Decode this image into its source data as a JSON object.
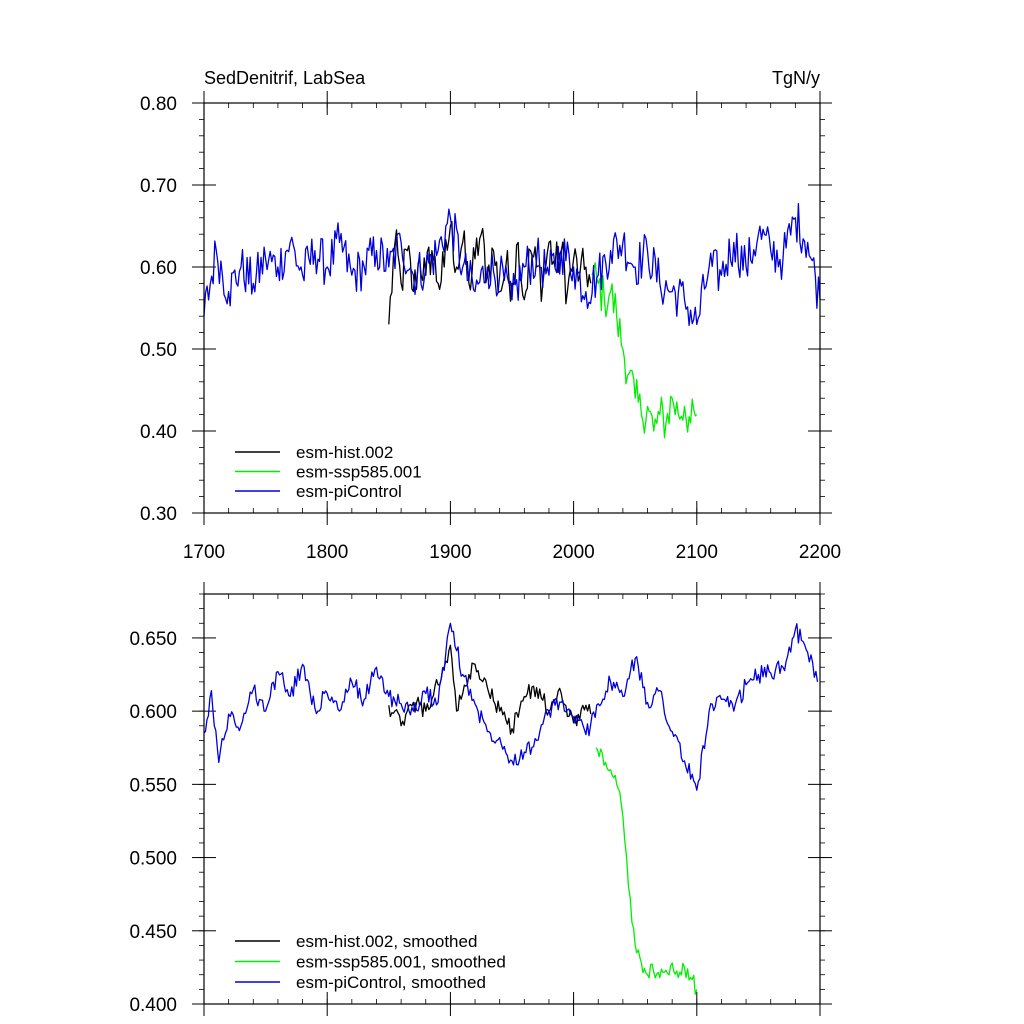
{
  "chart_data": [
    {
      "type": "line",
      "title_left": "SedDenitrif, LabSea",
      "title_right": "TgN/y",
      "xlabel": "",
      "ylabel": "",
      "xlim": [
        1700,
        2200
      ],
      "ylim": [
        0.3,
        0.8
      ],
      "x_ticks": [
        1700,
        1800,
        1900,
        2000,
        2100,
        2200
      ],
      "x_tick_labels": [
        "1700",
        "1800",
        "1900",
        "2000",
        "2100",
        "2200"
      ],
      "y_ticks": [
        0.3,
        0.4,
        0.5,
        0.6,
        0.7,
        0.8
      ],
      "y_tick_labels": [
        "0.30",
        "0.40",
        "0.50",
        "0.60",
        "0.70",
        "0.80"
      ],
      "grid": false,
      "legend_position": "bottom-left",
      "series": [
        {
          "name": "esm-hist.002",
          "color": "#000000",
          "x": [
            1850,
            1855,
            1860,
            1865,
            1870,
            1875,
            1880,
            1885,
            1890,
            1895,
            1900,
            1905,
            1910,
            1915,
            1920,
            1925,
            1930,
            1935,
            1940,
            1945,
            1950,
            1955,
            1960,
            1965,
            1970,
            1975,
            1980,
            1985,
            1990,
            1995,
            2000,
            2005,
            2010,
            2014
          ],
          "y": [
            0.53,
            0.63,
            0.58,
            0.62,
            0.57,
            0.61,
            0.59,
            0.62,
            0.58,
            0.6,
            0.65,
            0.6,
            0.63,
            0.58,
            0.61,
            0.64,
            0.59,
            0.62,
            0.57,
            0.6,
            0.58,
            0.63,
            0.56,
            0.62,
            0.6,
            0.58,
            0.63,
            0.6,
            0.62,
            0.57,
            0.61,
            0.59,
            0.6,
            0.58
          ]
        },
        {
          "name": "esm-ssp585.001",
          "color": "#00ee00",
          "x": [
            2015,
            2020,
            2025,
            2030,
            2035,
            2040,
            2045,
            2050,
            2055,
            2060,
            2065,
            2070,
            2075,
            2080,
            2085,
            2090,
            2095,
            2100
          ],
          "y": [
            0.59,
            0.58,
            0.56,
            0.57,
            0.54,
            0.5,
            0.47,
            0.44,
            0.42,
            0.43,
            0.4,
            0.42,
            0.41,
            0.44,
            0.42,
            0.43,
            0.41,
            0.42
          ]
        },
        {
          "name": "esm-piControl",
          "color": "#0000dd",
          "x": [
            1700,
            1710,
            1720,
            1730,
            1740,
            1750,
            1760,
            1770,
            1780,
            1790,
            1800,
            1810,
            1820,
            1830,
            1840,
            1850,
            1860,
            1870,
            1880,
            1890,
            1900,
            1910,
            1920,
            1930,
            1940,
            1950,
            1960,
            1970,
            1980,
            1990,
            2000,
            2010,
            2020,
            2030,
            2040,
            2050,
            2060,
            2070,
            2080,
            2090,
            2100,
            2110,
            2120,
            2130,
            2140,
            2150,
            2160,
            2170,
            2180,
            2190,
            2200
          ],
          "y": [
            0.54,
            0.62,
            0.57,
            0.6,
            0.58,
            0.61,
            0.6,
            0.63,
            0.59,
            0.62,
            0.6,
            0.63,
            0.59,
            0.6,
            0.62,
            0.6,
            0.63,
            0.59,
            0.6,
            0.62,
            0.66,
            0.6,
            0.57,
            0.6,
            0.59,
            0.56,
            0.6,
            0.61,
            0.59,
            0.62,
            0.6,
            0.57,
            0.59,
            0.62,
            0.63,
            0.6,
            0.62,
            0.58,
            0.57,
            0.56,
            0.53,
            0.6,
            0.59,
            0.63,
            0.6,
            0.64,
            0.62,
            0.61,
            0.66,
            0.63,
            0.56
          ]
        }
      ]
    },
    {
      "type": "line",
      "xlabel": "",
      "ylabel": "",
      "xlim": [
        1700,
        2200
      ],
      "ylim": [
        0.4,
        0.68
      ],
      "y_ticks": [
        0.4,
        0.45,
        0.5,
        0.55,
        0.6,
        0.65
      ],
      "y_tick_labels": [
        "0.400",
        "0.450",
        "0.500",
        "0.550",
        "0.600",
        "0.650"
      ],
      "grid": false,
      "legend_position": "bottom-left",
      "series": [
        {
          "name": "esm-hist.002, smoothed",
          "color": "#000000",
          "x": [
            1850,
            1860,
            1870,
            1880,
            1890,
            1895,
            1900,
            1905,
            1910,
            1920,
            1930,
            1940,
            1950,
            1960,
            1970,
            1980,
            1990,
            2000,
            2010,
            2014
          ],
          "y": [
            0.604,
            0.59,
            0.606,
            0.6,
            0.618,
            0.63,
            0.645,
            0.6,
            0.612,
            0.632,
            0.616,
            0.6,
            0.588,
            0.61,
            0.616,
            0.6,
            0.612,
            0.592,
            0.604,
            0.598
          ]
        },
        {
          "name": "esm-ssp585.001, smoothed",
          "color": "#00ee00",
          "x": [
            2018,
            2022,
            2026,
            2030,
            2035,
            2040,
            2043,
            2046,
            2050,
            2055,
            2060,
            2065,
            2070,
            2075,
            2080,
            2085,
            2090,
            2095,
            2100
          ],
          "y": [
            0.575,
            0.574,
            0.565,
            0.56,
            0.55,
            0.528,
            0.5,
            0.472,
            0.44,
            0.428,
            0.42,
            0.422,
            0.418,
            0.423,
            0.428,
            0.418,
            0.425,
            0.418,
            0.41
          ]
        },
        {
          "name": "esm-piControl, smoothed",
          "color": "#0000dd",
          "x": [
            1700,
            1706,
            1712,
            1720,
            1730,
            1740,
            1750,
            1760,
            1770,
            1780,
            1790,
            1800,
            1810,
            1820,
            1830,
            1840,
            1850,
            1860,
            1870,
            1880,
            1890,
            1900,
            1910,
            1920,
            1930,
            1940,
            1950,
            1960,
            1970,
            1980,
            1990,
            2000,
            2010,
            2020,
            2030,
            2040,
            2050,
            2060,
            2070,
            2080,
            2090,
            2100,
            2110,
            2120,
            2130,
            2140,
            2150,
            2160,
            2170,
            2180,
            2190,
            2198
          ],
          "y": [
            0.585,
            0.614,
            0.565,
            0.598,
            0.59,
            0.615,
            0.6,
            0.627,
            0.61,
            0.632,
            0.602,
            0.612,
            0.6,
            0.62,
            0.608,
            0.63,
            0.61,
            0.605,
            0.6,
            0.612,
            0.606,
            0.66,
            0.625,
            0.605,
            0.586,
            0.582,
            0.566,
            0.572,
            0.58,
            0.6,
            0.606,
            0.596,
            0.584,
            0.605,
            0.62,
            0.61,
            0.636,
            0.606,
            0.614,
            0.586,
            0.566,
            0.546,
            0.6,
            0.608,
            0.6,
            0.618,
            0.625,
            0.626,
            0.63,
            0.656,
            0.64,
            0.62
          ]
        }
      ]
    }
  ]
}
